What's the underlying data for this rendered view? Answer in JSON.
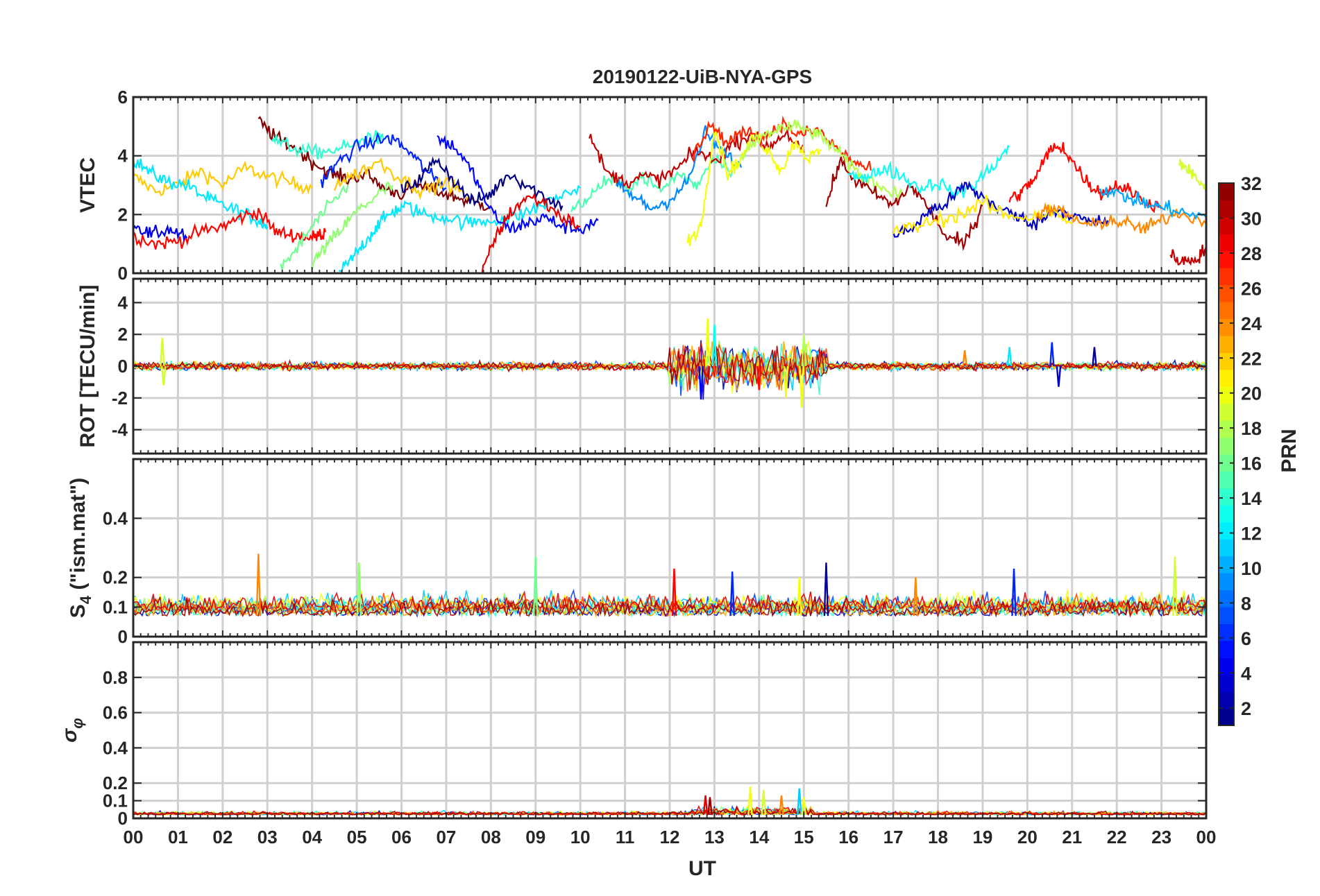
{
  "title": "20190122-UiB-NYA-GPS",
  "chart_data": [
    {
      "type": "line",
      "ylabel": "VTEC",
      "ylim": [
        0,
        6
      ],
      "yticks": [
        0,
        2,
        4,
        6
      ],
      "grid": true,
      "series": [
        {
          "prn": 22,
          "x": [
            0.0,
            0.5,
            1.0,
            1.5,
            2.0,
            2.5,
            3.0,
            3.5,
            4.0
          ],
          "y": [
            3.3,
            2.8,
            3.0,
            3.5,
            3.0,
            3.6,
            3.3,
            3.1,
            2.9
          ]
        },
        {
          "prn": 12,
          "x": [
            0.0,
            0.4,
            0.8,
            1.2,
            1.6,
            2.0,
            2.4,
            2.8,
            3.0
          ],
          "y": [
            3.9,
            3.4,
            3.1,
            3.0,
            2.6,
            2.3,
            2.1,
            1.8,
            1.6
          ]
        },
        {
          "prn": 28,
          "x": [
            0.0,
            0.5,
            1.0,
            1.5,
            2.0,
            2.4,
            2.8,
            3.2,
            3.6,
            4.0,
            4.3
          ],
          "y": [
            1.3,
            1.0,
            1.1,
            1.4,
            1.6,
            1.9,
            2.1,
            1.4,
            1.3,
            1.2,
            1.4
          ]
        },
        {
          "prn": 4,
          "x": [
            0.0,
            0.4,
            0.8,
            1.2
          ],
          "y": [
            1.7,
            1.3,
            1.5,
            1.2
          ]
        },
        {
          "prn": 32,
          "x": [
            2.8,
            3.2,
            3.6,
            4.0,
            4.4,
            4.8,
            5.2,
            5.6,
            6.0,
            6.4,
            6.8,
            7.2,
            7.6,
            8.0
          ],
          "y": [
            5.2,
            4.6,
            4.3,
            3.8,
            3.4,
            3.2,
            3.4,
            2.9,
            2.7,
            3.0,
            2.8,
            2.6,
            2.4,
            2.3
          ]
        },
        {
          "prn": 14,
          "x": [
            3.1,
            3.5,
            4.0,
            4.5,
            5.0,
            5.3,
            5.6
          ],
          "y": [
            4.6,
            4.3,
            4.1,
            4.2,
            4.4,
            4.7,
            4.5
          ]
        },
        {
          "prn": 16,
          "x": [
            3.3,
            3.7,
            4.0,
            4.4,
            4.8
          ],
          "y": [
            0.2,
            0.9,
            1.6,
            2.3,
            3.0
          ]
        },
        {
          "prn": 17,
          "x": [
            4.0,
            4.3,
            4.6,
            5.0,
            5.4,
            5.8
          ],
          "y": [
            0.3,
            0.9,
            1.4,
            2.1,
            2.6,
            3.0
          ]
        },
        {
          "prn": 12,
          "x": [
            4.6,
            4.9,
            5.2,
            5.5,
            5.8,
            6.1,
            6.5,
            7.0,
            7.5,
            8.0,
            8.5,
            9.0,
            9.5,
            10.0
          ],
          "y": [
            0.0,
            0.5,
            1.1,
            1.7,
            2.1,
            2.3,
            2.0,
            1.9,
            1.7,
            1.8,
            1.9,
            2.2,
            2.6,
            2.9
          ]
        },
        {
          "prn": 6,
          "x": [
            4.2,
            4.6,
            5.0,
            5.4,
            5.8,
            6.2,
            6.6,
            7.0
          ],
          "y": [
            3.1,
            3.8,
            4.3,
            4.5,
            4.6,
            4.1,
            3.4,
            2.9
          ]
        },
        {
          "prn": 22,
          "x": [
            4.5,
            5.0,
            5.5,
            6.0,
            6.5,
            7.0,
            7.5
          ],
          "y": [
            3.0,
            3.4,
            3.8,
            3.2,
            2.8,
            3.1,
            2.6
          ]
        },
        {
          "prn": 1,
          "x": [
            6.0,
            6.4,
            6.8,
            7.2,
            7.6,
            8.0,
            8.4,
            8.8,
            9.2,
            9.6
          ],
          "y": [
            2.8,
            3.2,
            3.9,
            3.1,
            2.4,
            2.7,
            3.4,
            3.0,
            2.6,
            2.3
          ]
        },
        {
          "prn": 5,
          "x": [
            6.8,
            7.2,
            7.6,
            8.0,
            8.4,
            8.8,
            9.2,
            9.6,
            10.0,
            10.4
          ],
          "y": [
            4.6,
            4.3,
            3.4,
            2.1,
            1.5,
            1.7,
            1.9,
            1.6,
            1.5,
            1.8
          ]
        },
        {
          "prn": 29,
          "x": [
            7.8,
            8.1,
            8.4,
            8.8,
            9.2,
            9.6,
            10.0
          ],
          "y": [
            0.0,
            1.2,
            2.0,
            2.6,
            2.4,
            1.9,
            1.6
          ]
        },
        {
          "prn": 15,
          "x": [
            9.8,
            10.2,
            10.6,
            11.0,
            11.4,
            11.8,
            12.2,
            12.6,
            13.0,
            13.4
          ],
          "y": [
            2.1,
            2.6,
            3.2,
            2.9,
            3.3,
            2.8,
            3.4,
            3.0,
            4.0,
            3.5
          ]
        },
        {
          "prn": 30,
          "x": [
            10.2,
            10.6,
            11.0,
            11.4,
            11.8,
            12.2,
            12.6,
            13.0,
            13.4,
            13.8,
            14.2,
            14.6,
            15.0
          ],
          "y": [
            4.7,
            3.4,
            3.1,
            3.3,
            3.2,
            3.6,
            4.2,
            3.8,
            4.4,
            4.7,
            4.3,
            4.8,
            4.1
          ]
        },
        {
          "prn": 9,
          "x": [
            10.8,
            11.2,
            11.6,
            12.0,
            12.4,
            12.8,
            13.2,
            13.6
          ],
          "y": [
            3.0,
            2.6,
            2.2,
            2.5,
            3.1,
            4.8,
            4.1,
            3.6
          ]
        },
        {
          "prn": 20,
          "x": [
            12.4,
            12.7,
            13.0,
            13.3,
            13.6,
            13.9,
            14.2,
            14.5,
            14.8,
            15.1,
            15.4
          ],
          "y": [
            1.1,
            1.6,
            5.0,
            3.4,
            3.9,
            4.7,
            4.2,
            3.5,
            4.5,
            3.9,
            4.2
          ]
        },
        {
          "prn": 27,
          "x": [
            12.5,
            12.9,
            13.3,
            13.7,
            14.1,
            14.5,
            14.9,
            15.3,
            15.7,
            16.1,
            16.5
          ],
          "y": [
            3.9,
            5.1,
            4.4,
            4.9,
            4.6,
            5.1,
            4.7,
            4.9,
            4.3,
            3.8,
            3.5
          ]
        },
        {
          "prn": 18,
          "x": [
            13.6,
            14.0,
            14.4,
            14.8,
            15.2,
            15.6,
            16.0,
            16.4,
            16.8,
            17.2
          ],
          "y": [
            3.9,
            4.6,
            4.9,
            5.0,
            4.8,
            4.4,
            3.7,
            3.2,
            2.9,
            2.7
          ]
        },
        {
          "prn": 31,
          "x": [
            15.5,
            15.8,
            16.2,
            16.6,
            17.0,
            17.4,
            17.8,
            18.2,
            18.6,
            19.0
          ],
          "y": [
            2.3,
            3.8,
            3.1,
            2.7,
            2.3,
            3.0,
            2.2,
            1.2,
            1.0,
            2.3
          ]
        },
        {
          "prn": 13,
          "x": [
            16.0,
            16.4,
            16.8,
            17.2,
            17.6,
            18.0,
            18.4,
            18.8,
            19.2,
            19.6
          ],
          "y": [
            3.5,
            3.2,
            3.6,
            3.3,
            2.9,
            3.1,
            2.7,
            3.0,
            3.6,
            4.3
          ]
        },
        {
          "prn": 3,
          "x": [
            17.0,
            17.4,
            17.8,
            18.2,
            18.6,
            19.0,
            19.4,
            19.8,
            20.2,
            20.6,
            21.0,
            21.4,
            21.8
          ],
          "y": [
            1.3,
            1.5,
            2.1,
            2.4,
            3.0,
            2.6,
            2.2,
            1.9,
            1.7,
            2.2,
            2.0,
            1.7,
            1.8
          ]
        },
        {
          "prn": 21,
          "x": [
            17.0,
            17.5,
            18.0,
            18.5,
            19.0,
            19.5,
            20.0,
            20.5,
            21.0
          ],
          "y": [
            1.4,
            1.6,
            1.8,
            2.0,
            2.4,
            2.0,
            1.9,
            2.1,
            1.7
          ]
        },
        {
          "prn": 28,
          "x": [
            19.6,
            19.9,
            20.2,
            20.5,
            20.8,
            21.1,
            21.4,
            21.7,
            22.0,
            22.3,
            22.6,
            23.0
          ],
          "y": [
            2.5,
            2.8,
            3.3,
            4.2,
            4.3,
            3.6,
            3.0,
            2.7,
            3.0,
            2.8,
            2.5,
            2.2
          ]
        },
        {
          "prn": 24,
          "x": [
            20.2,
            20.6,
            21.0,
            21.4,
            21.8,
            22.2,
            22.6,
            23.0,
            23.4,
            24.0
          ],
          "y": [
            2.0,
            2.2,
            1.9,
            1.6,
            1.8,
            1.7,
            1.5,
            1.8,
            2.1,
            1.7
          ]
        },
        {
          "prn": 10,
          "x": [
            21.6,
            22.0,
            22.4,
            22.8,
            23.2,
            23.6,
            24.0
          ],
          "y": [
            2.9,
            2.7,
            2.5,
            2.3,
            2.2,
            2.0,
            1.9
          ]
        },
        {
          "prn": 19,
          "x": [
            23.4,
            23.6,
            23.8,
            24.0
          ],
          "y": [
            3.8,
            3.5,
            3.2,
            2.9
          ]
        },
        {
          "prn": 30,
          "x": [
            23.2,
            23.5,
            23.8,
            24.0
          ],
          "y": [
            0.6,
            0.4,
            0.5,
            0.9
          ]
        }
      ]
    },
    {
      "type": "line",
      "ylabel": "ROT [TECU/min]",
      "ylim": [
        -5.5,
        5.5
      ],
      "yticks": [
        -4,
        -2,
        0,
        2,
        4
      ],
      "grid": true,
      "description_values": {
        "typical_amplitude": 0.3,
        "active_window_ut": [
          12.0,
          15.5
        ],
        "active_amplitude": 2.0
      },
      "spikes": [
        {
          "x": 0.65,
          "y": 1.8,
          "prn": 19
        },
        {
          "x": 0.68,
          "y": -1.2,
          "prn": 19
        },
        {
          "x": 12.85,
          "y": 3.0,
          "prn": 20
        },
        {
          "x": 12.7,
          "y": -2.1,
          "prn": 5
        },
        {
          "x": 13.0,
          "y": 2.6,
          "prn": 13
        },
        {
          "x": 14.0,
          "y": -1.5,
          "prn": 28
        },
        {
          "x": 14.6,
          "y": -2.0,
          "prn": 20
        },
        {
          "x": 14.95,
          "y": -2.6,
          "prn": 20
        },
        {
          "x": 15.0,
          "y": 2.0,
          "prn": 18
        },
        {
          "x": 18.6,
          "y": 1.0,
          "prn": 24
        },
        {
          "x": 19.6,
          "y": 1.2,
          "prn": 12
        },
        {
          "x": 20.55,
          "y": 1.5,
          "prn": 6
        },
        {
          "x": 20.7,
          "y": -1.3,
          "prn": 3
        },
        {
          "x": 21.5,
          "y": 1.2,
          "prn": 2
        }
      ]
    },
    {
      "type": "line",
      "ylabel_main": "S",
      "ylabel_sub": "4",
      "ylabel_rest": " (\"ism.mat\")",
      "ylim": [
        0,
        0.6
      ],
      "yticks": [
        0,
        0.1,
        0.2,
        0.4
      ],
      "grid": true,
      "baseline": 0.07,
      "spikes": [
        {
          "x": 2.8,
          "y": 0.28,
          "prn": 24
        },
        {
          "x": 5.05,
          "y": 0.25,
          "prn": 17
        },
        {
          "x": 9.0,
          "y": 0.27,
          "prn": 16
        },
        {
          "x": 12.1,
          "y": 0.23,
          "prn": 28
        },
        {
          "x": 13.4,
          "y": 0.22,
          "prn": 6
        },
        {
          "x": 15.5,
          "y": 0.25,
          "prn": 2
        },
        {
          "x": 19.7,
          "y": 0.23,
          "prn": 6
        },
        {
          "x": 23.3,
          "y": 0.27,
          "prn": 19
        },
        {
          "x": 17.5,
          "y": 0.2,
          "prn": 24
        },
        {
          "x": 14.9,
          "y": 0.2,
          "prn": 20
        }
      ]
    },
    {
      "type": "line",
      "ylabel": "σ_φ",
      "ylim": [
        0,
        1.0
      ],
      "yticks": [
        0,
        0.1,
        0.2,
        0.4,
        0.6,
        0.8
      ],
      "grid": true,
      "baseline": 0.02,
      "spikes": [
        {
          "x": 12.8,
          "y": 0.13,
          "prn": 29
        },
        {
          "x": 12.9,
          "y": 0.12,
          "prn": 31
        },
        {
          "x": 13.8,
          "y": 0.18,
          "prn": 20
        },
        {
          "x": 14.1,
          "y": 0.16,
          "prn": 19
        },
        {
          "x": 14.5,
          "y": 0.13,
          "prn": 24
        },
        {
          "x": 14.9,
          "y": 0.17,
          "prn": 11
        },
        {
          "x": 15.0,
          "y": 0.12,
          "prn": 20
        }
      ]
    }
  ],
  "x_axis": {
    "label": "UT",
    "ticks": [
      "00",
      "01",
      "02",
      "03",
      "04",
      "05",
      "06",
      "07",
      "08",
      "09",
      "10",
      "11",
      "12",
      "13",
      "14",
      "15",
      "16",
      "17",
      "18",
      "19",
      "20",
      "21",
      "22",
      "23",
      "00"
    ]
  },
  "colorbar": {
    "label": "PRN",
    "colormap": "jet",
    "range": [
      1,
      32
    ],
    "ticks": [
      "2",
      "4",
      "6",
      "8",
      "10",
      "12",
      "14",
      "16",
      "18",
      "20",
      "22",
      "24",
      "26",
      "28",
      "30",
      "32"
    ]
  }
}
